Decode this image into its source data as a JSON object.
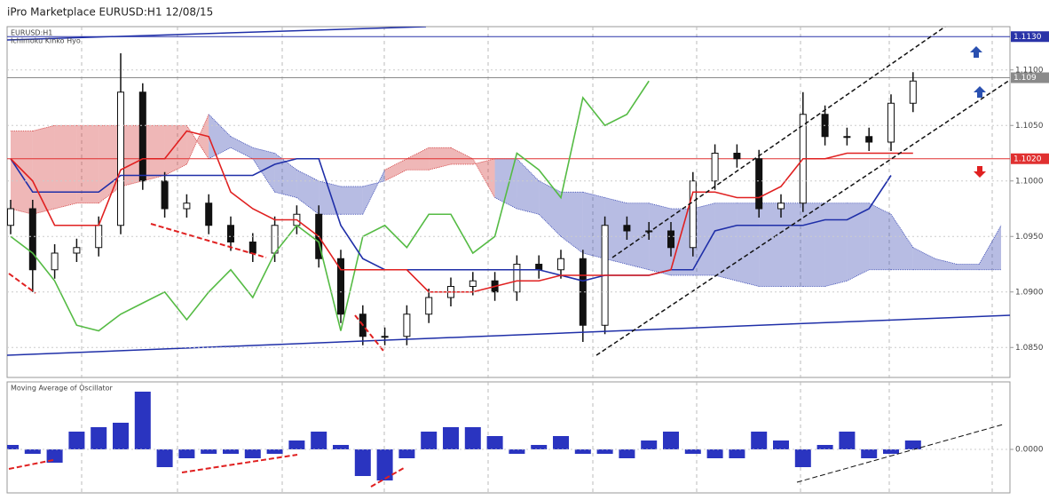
{
  "chart_data": [
    {
      "type": "candlestick",
      "title": "iPro Marketplace EURUSD:H1 12/08/15",
      "annotations": [
        "EURUSD:H1",
        "Ichimoku Kinko Hyo"
      ],
      "categories": [
        null,
        null,
        null,
        null,
        null,
        null,
        null,
        null,
        null,
        null,
        null,
        null,
        null,
        null,
        null,
        null,
        null,
        null,
        null,
        null,
        null,
        null,
        null,
        null,
        null,
        null,
        null,
        null,
        null,
        null,
        null,
        null,
        null,
        null,
        null,
        null,
        null,
        null,
        null,
        null,
        null,
        null,
        null,
        null,
        null,
        null
      ],
      "ylim": [
        1.0823,
        1.1139
      ],
      "yticks": [
        {
          "value": 1.11,
          "label": "1.1100"
        },
        {
          "value": 1.105,
          "label": "1.1050"
        },
        {
          "value": 1.1,
          "label": "1.1000"
        },
        {
          "value": 1.095,
          "label": "1.0950"
        },
        {
          "value": 1.09,
          "label": "1.0900"
        },
        {
          "value": 1.085,
          "label": "1.0850"
        }
      ],
      "grid": true,
      "price_lines": [
        {
          "value": 1.113,
          "label": "1.1130",
          "color": "#2a34a8"
        },
        {
          "value": 1.1093,
          "label": "1.109",
          "color": "#8a8a8a"
        },
        {
          "value": 1.102,
          "label": "1.1020",
          "color": "#e03030"
        }
      ],
      "candles": {
        "color": "#111111",
        "open": [
          1.096,
          1.0975,
          1.092,
          1.0935,
          1.094,
          1.096,
          1.108,
          1.1,
          1.0975,
          1.098,
          1.096,
          1.0945,
          1.0935,
          1.096,
          1.097,
          1.093,
          1.088,
          1.086,
          1.086,
          1.088,
          1.0895,
          1.0905,
          1.091,
          1.09,
          1.0925,
          1.092,
          1.093,
          1.087,
          1.096,
          1.0955,
          1.0955,
          1.094,
          1.1,
          1.1025,
          1.102,
          1.0975,
          1.098,
          1.106,
          1.104,
          1.104,
          1.1035,
          1.107,
          null,
          null,
          null,
          null
        ],
        "high": [
          1.0983,
          1.0983,
          1.0943,
          1.0948,
          1.0968,
          1.1115,
          1.1088,
          1.1008,
          1.0988,
          1.0988,
          1.0968,
          1.0953,
          1.0968,
          1.0978,
          1.0978,
          1.0938,
          1.0888,
          1.0868,
          1.0888,
          1.0903,
          1.0913,
          1.0918,
          1.0918,
          1.0933,
          1.0933,
          1.0938,
          1.0938,
          1.0968,
          1.0968,
          1.0963,
          1.0963,
          1.1008,
          1.1033,
          1.1033,
          1.1028,
          1.0988,
          1.108,
          1.1068,
          1.1048,
          1.1048,
          1.1078,
          1.1098,
          null,
          null,
          null,
          null
        ],
        "low": [
          1.0952,
          1.09,
          1.0912,
          1.0927,
          1.0932,
          1.0952,
          1.0992,
          1.0967,
          1.0967,
          1.0952,
          1.0937,
          1.0927,
          1.0927,
          1.0952,
          1.0922,
          1.0872,
          1.0852,
          1.0852,
          1.0852,
          1.0872,
          1.0887,
          1.0897,
          1.0892,
          1.0892,
          1.0912,
          1.0912,
          1.0855,
          1.0862,
          1.0947,
          1.0947,
          1.0932,
          1.0932,
          1.0992,
          1.1012,
          1.0967,
          1.0967,
          1.0972,
          1.1032,
          1.1032,
          1.1027,
          1.1027,
          1.1062,
          null,
          null,
          null,
          null
        ],
        "close": [
          1.0975,
          1.092,
          1.0935,
          1.094,
          1.096,
          1.108,
          1.1,
          1.0975,
          1.098,
          1.096,
          1.0945,
          1.0935,
          1.096,
          1.097,
          1.093,
          1.088,
          1.086,
          1.086,
          1.088,
          1.0895,
          1.0905,
          1.091,
          1.09,
          1.0925,
          1.092,
          1.093,
          1.087,
          1.096,
          1.0955,
          1.0955,
          1.094,
          1.1,
          1.1025,
          1.102,
          1.0975,
          1.098,
          1.106,
          1.104,
          1.104,
          1.1035,
          1.107,
          1.109,
          null,
          null,
          null,
          null
        ]
      },
      "cloud": {
        "colors": [
          "#d03030",
          "#3040b0"
        ],
        "span_a": [
          1.1045,
          1.1045,
          1.105,
          1.105,
          1.105,
          1.105,
          1.105,
          1.105,
          1.105,
          1.102,
          1.103,
          1.102,
          1.099,
          1.0985,
          1.097,
          1.097,
          1.097,
          1.101,
          1.102,
          1.103,
          1.103,
          1.102,
          1.0985,
          1.0975,
          1.097,
          1.095,
          1.0935,
          1.093,
          1.0925,
          1.092,
          1.0915,
          1.0915,
          1.0915,
          1.091,
          1.0905,
          1.0905,
          1.0905,
          1.0905,
          1.091,
          1.092,
          1.092,
          1.092,
          1.092,
          1.092,
          1.092,
          1.092
        ],
        "span_b": [
          1.0975,
          1.097,
          1.0975,
          1.098,
          1.098,
          1.0995,
          1.1,
          1.1005,
          1.1015,
          1.106,
          1.104,
          1.103,
          1.1025,
          1.101,
          1.1,
          1.0995,
          1.0995,
          1.1,
          1.101,
          1.101,
          1.1015,
          1.1015,
          1.102,
          1.102,
          1.1,
          1.099,
          1.099,
          1.0985,
          1.098,
          1.098,
          1.0975,
          1.0975,
          1.098,
          1.098,
          1.098,
          1.098,
          1.098,
          1.098,
          1.098,
          1.098,
          1.097,
          1.094,
          1.093,
          1.0925,
          1.0925,
          1.096
        ]
      },
      "series": [
        {
          "color": "#55bb44",
          "values": [
            1.095,
            1.0935,
            1.091,
            1.087,
            1.0865,
            1.088,
            1.089,
            1.09,
            1.0875,
            1.09,
            1.092,
            1.0895,
            1.0935,
            1.096,
            1.0945,
            1.0865,
            1.095,
            1.096,
            1.094,
            1.097,
            1.097,
            1.0935,
            1.095,
            1.1025,
            1.101,
            1.0985,
            1.1075,
            1.105,
            1.106,
            1.109,
            null,
            null,
            null,
            null,
            null,
            null,
            null,
            null,
            null,
            null,
            null,
            null,
            null,
            null,
            null,
            null
          ]
        },
        {
          "color": "#1f2fa8",
          "values": [
            1.102,
            1.099,
            1.099,
            1.099,
            1.099,
            1.1005,
            1.1005,
            1.1005,
            1.1005,
            1.1005,
            1.1005,
            1.1005,
            1.1015,
            1.102,
            1.102,
            1.096,
            1.093,
            1.092,
            1.092,
            1.092,
            1.092,
            1.092,
            1.092,
            1.092,
            1.092,
            1.0915,
            1.091,
            1.0915,
            1.0915,
            1.0915,
            1.092,
            1.092,
            1.0955,
            1.096,
            1.096,
            1.096,
            1.096,
            1.0965,
            1.0965,
            1.0975,
            1.1005,
            null,
            null,
            null,
            null,
            null
          ]
        },
        {
          "color": "#e02020",
          "values": [
            1.102,
            1.1,
            1.096,
            1.096,
            1.096,
            1.101,
            1.102,
            1.102,
            1.1045,
            1.104,
            1.099,
            1.0975,
            1.0965,
            1.0965,
            1.095,
            1.092,
            1.092,
            1.092,
            1.092,
            1.09,
            1.09,
            1.09,
            1.0905,
            1.091,
            1.091,
            1.0915,
            1.0915,
            1.0915,
            1.0915,
            1.0915,
            1.092,
            1.099,
            1.099,
            1.0985,
            1.0985,
            1.0995,
            1.102,
            1.102,
            1.1025,
            1.1025,
            1.1025,
            1.1025,
            null,
            null,
            null,
            null
          ]
        }
      ]
    },
    {
      "type": "bar",
      "title": "Moving Average of Oscillator",
      "color": "#2a34c0",
      "ylim": [
        -0.00098,
        0.00152
      ],
      "yticks": [
        {
          "value": 0,
          "label": "0.0000"
        }
      ],
      "grid": true,
      "values": [
        0.0001,
        -0.0001,
        -0.0003,
        0.0004,
        0.0005,
        0.0006,
        0.0013,
        -0.0004,
        -0.0002,
        -0.0001,
        -0.0001,
        -0.0002,
        -0.0001,
        0.0002,
        0.0004,
        0.0001,
        -0.0006,
        -0.0007,
        -0.0002,
        0.0004,
        0.0005,
        0.0005,
        0.0003,
        -0.0001,
        0.0001,
        0.0003,
        -0.0001,
        -0.0001,
        -0.0002,
        0.0002,
        0.0004,
        -0.0001,
        -0.0002,
        -0.0002,
        0.0004,
        0.0002,
        -0.0004,
        0.0001,
        0.0004,
        -0.0002,
        -0.0001,
        0.0002,
        null,
        null,
        null,
        null
      ]
    }
  ]
}
